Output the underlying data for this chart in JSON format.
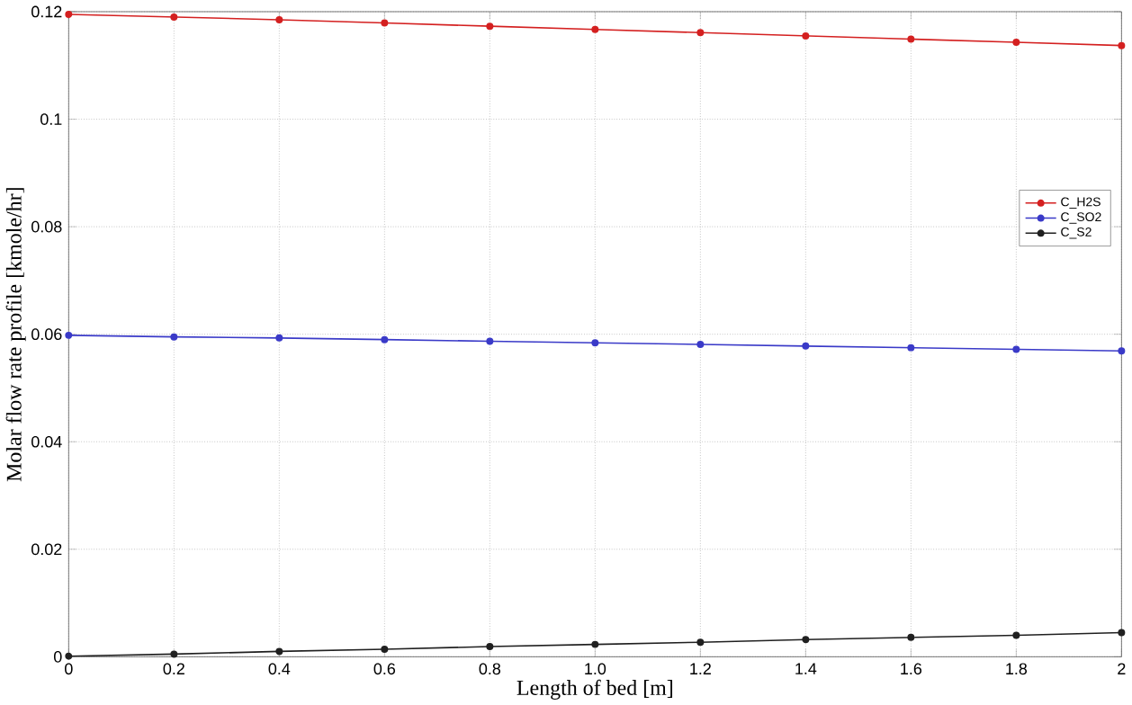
{
  "chart_data": {
    "type": "line",
    "xlabel": "Length of bed [m]",
    "ylabel": "Molar flow rate profile [kmole/hr]",
    "x": [
      0,
      0.2,
      0.4,
      0.6,
      0.8,
      1.0,
      1.2,
      1.4,
      1.6,
      1.8,
      2.0
    ],
    "series": [
      {
        "name": "C_H2S",
        "color": "#d42020",
        "values": [
          0.1195,
          0.119,
          0.1185,
          0.1179,
          0.1173,
          0.1167,
          0.1161,
          0.1155,
          0.1149,
          0.1143,
          0.1137
        ]
      },
      {
        "name": "C_SO2",
        "color": "#3a3ac8",
        "values": [
          0.0598,
          0.0595,
          0.0593,
          0.059,
          0.0587,
          0.0584,
          0.0581,
          0.0578,
          0.0575,
          0.0572,
          0.0569
        ]
      },
      {
        "name": "C_S2",
        "color": "#202020",
        "values": [
          0.0001,
          0.0005,
          0.001,
          0.0014,
          0.0019,
          0.0023,
          0.0027,
          0.0032,
          0.0036,
          0.004,
          0.0045
        ]
      }
    ],
    "xlim": [
      0,
      2
    ],
    "ylim": [
      0,
      0.12
    ],
    "xticks": [
      0,
      0.2,
      0.4,
      0.6,
      0.8,
      {
        "value": 1.0,
        "label": "1.0"
      },
      1.2,
      1.4,
      1.6,
      1.8,
      2
    ],
    "yticks": [
      0,
      0.02,
      0.04,
      0.06,
      0.08,
      0.1,
      0.12
    ],
    "grid": true,
    "legend": "right",
    "marker": "circle",
    "line_style": "solid"
  }
}
